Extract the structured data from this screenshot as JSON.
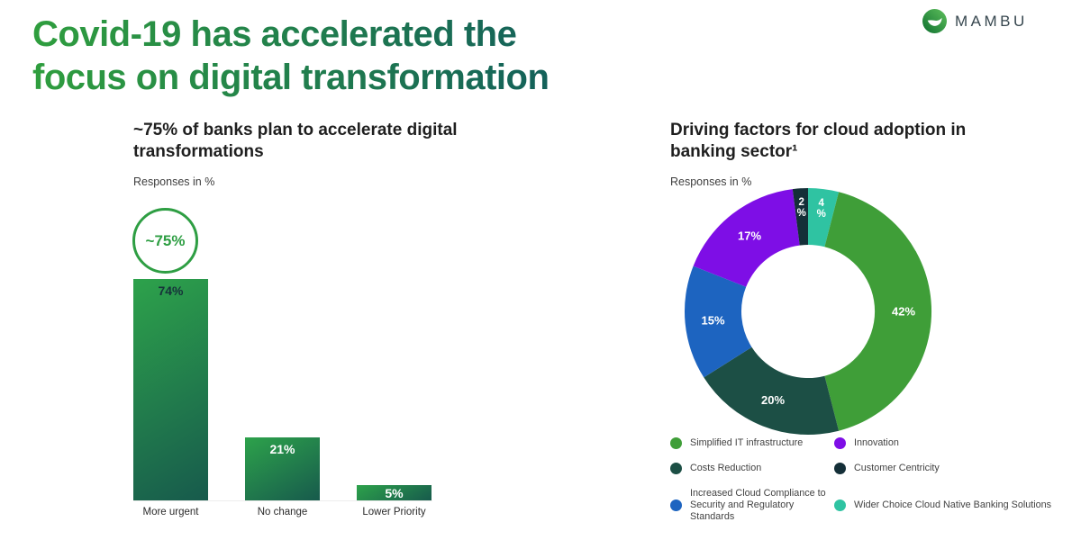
{
  "header": {
    "title_line1": "Covid-19 has accelerated the",
    "title_line2": "focus on digital transformation",
    "title_gradient": [
      "#2f9e3e",
      "#14615a"
    ]
  },
  "logo": {
    "wordmark": "MAMBU",
    "icon": "mambu-circle-swoosh-icon",
    "circle_colors": [
      "#0d6f2f",
      "#5fc05c"
    ]
  },
  "chart_data": [
    {
      "type": "bar",
      "title": "~75% of banks plan to accelerate digital transformations",
      "subtitle": "Responses in %",
      "highlight_badge": "~75%",
      "badge_color": "#2e9e43",
      "categories": [
        "More urgent",
        "No change",
        "Lower Priority"
      ],
      "values": [
        74,
        21,
        5
      ],
      "unit": "%",
      "ylim": [
        0,
        80
      ],
      "bar_gradient": [
        "#2da24b",
        "#175a4c"
      ],
      "value_label_colors": [
        "#16323a",
        "#ffffff",
        "#ffffff"
      ]
    },
    {
      "type": "donut",
      "title": "Driving factors for cloud adoption in banking sector¹",
      "subtitle": "Responses in %",
      "start_angle_deg": 0,
      "slices": [
        {
          "label": "Wider Choice Cloud Native Banking Solutions",
          "value": 4,
          "color": "#2fc3a2"
        },
        {
          "label": "Simplified IT infrastructure",
          "value": 42,
          "color": "#3f9e38"
        },
        {
          "label": "Costs Reduction",
          "value": 20,
          "color": "#1c4f45"
        },
        {
          "label": "Increased Cloud Compliance to Security and Regulatory Standards",
          "value": 15,
          "color": "#1d64c0"
        },
        {
          "label": "Innovation",
          "value": 17,
          "color": "#7e0ee6"
        },
        {
          "label": "Customer Centricity",
          "value": 2,
          "color": "#142f38"
        }
      ],
      "legend_order": [
        "Simplified IT infrastructure",
        "Innovation",
        "Costs Reduction",
        "Customer Centricity",
        "Increased Cloud Compliance to Security and Regulatory Standards",
        "Wider Choice Cloud Native Banking Solutions"
      ]
    }
  ]
}
